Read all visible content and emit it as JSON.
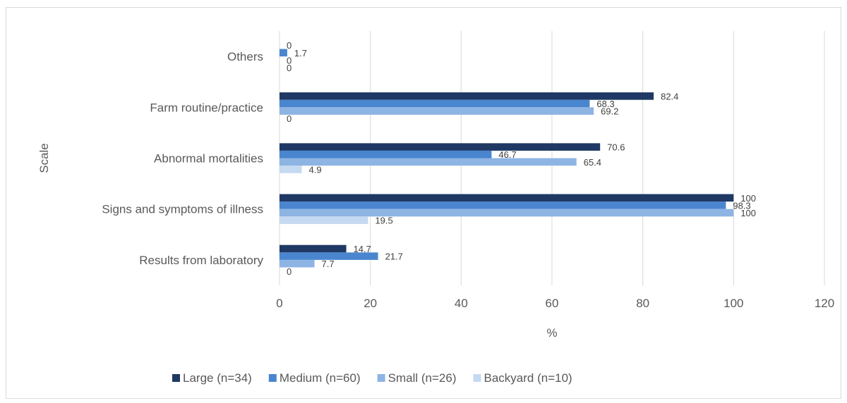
{
  "chart_data": {
    "type": "bar",
    "orientation": "horizontal",
    "categories": [
      "Results from laboratory",
      "Signs and symptoms of illness",
      "Abnormal mortalities",
      "Farm routine/practice",
      "Others"
    ],
    "series": [
      {
        "name": "Large  (n=34)",
        "color": "#1f3864",
        "values": [
          14.7,
          100,
          70.6,
          82.4,
          0
        ],
        "labels": [
          "14.7",
          "100",
          "70.6",
          "82.4",
          "0"
        ]
      },
      {
        "name": "Medium  (n=60)",
        "color": "#4a86cf",
        "values": [
          21.7,
          98.3,
          46.7,
          68.3,
          1.7
        ],
        "labels": [
          "21.7",
          "98.3",
          "46.7",
          "68.3",
          "1.7"
        ]
      },
      {
        "name": "Small (n=26)",
        "color": "#8eb4e3",
        "values": [
          7.7,
          100,
          65.4,
          69.2,
          0
        ],
        "labels": [
          "7.7",
          "100",
          "65.4",
          "69.2",
          "0"
        ]
      },
      {
        "name": "Backyard  (n=10)",
        "color": "#c5d9f1",
        "values": [
          0,
          19.5,
          4.9,
          0,
          0
        ],
        "labels": [
          "0",
          "19.5",
          "4.9",
          "0",
          "0"
        ]
      }
    ],
    "xlabel": "%",
    "ylabel": "Scale",
    "xlim": [
      0,
      120
    ],
    "xticks": [
      "0",
      "20",
      "40",
      "60",
      "80",
      "100",
      "120"
    ],
    "grid": true,
    "legend_position": "bottom"
  }
}
